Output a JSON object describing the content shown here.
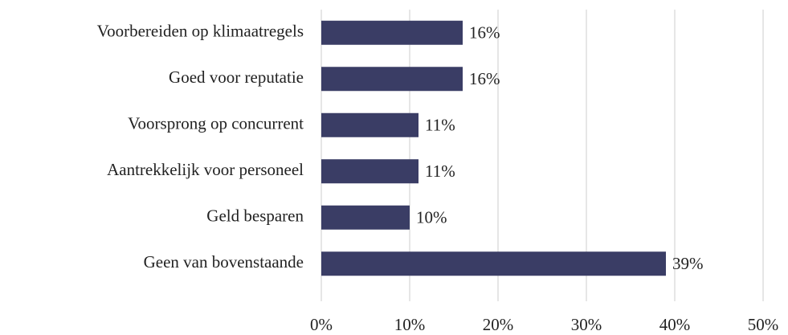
{
  "chart_data": {
    "type": "barh",
    "categories": [
      "Voorbereiden op klimaatregels",
      "Goed voor reputatie",
      "Voorsprong op concurrent",
      "Aantrekkelijk voor personeel",
      "Geld besparen",
      "Geen van bovenstaande"
    ],
    "values": [
      16,
      16,
      11,
      11,
      10,
      39
    ],
    "value_labels": [
      "16%",
      "16%",
      "11%",
      "11%",
      "10%",
      "39%"
    ],
    "color": "#3a3d65",
    "xlim": [
      0,
      50
    ],
    "xticks": [
      {
        "value": 0,
        "label": "0%"
      },
      {
        "value": 10,
        "label": "10%"
      },
      {
        "value": 20,
        "label": "20%"
      },
      {
        "value": 30,
        "label": "30%"
      },
      {
        "value": 40,
        "label": "40%"
      },
      {
        "value": 50,
        "label": "50%"
      }
    ],
    "grid": true
  }
}
